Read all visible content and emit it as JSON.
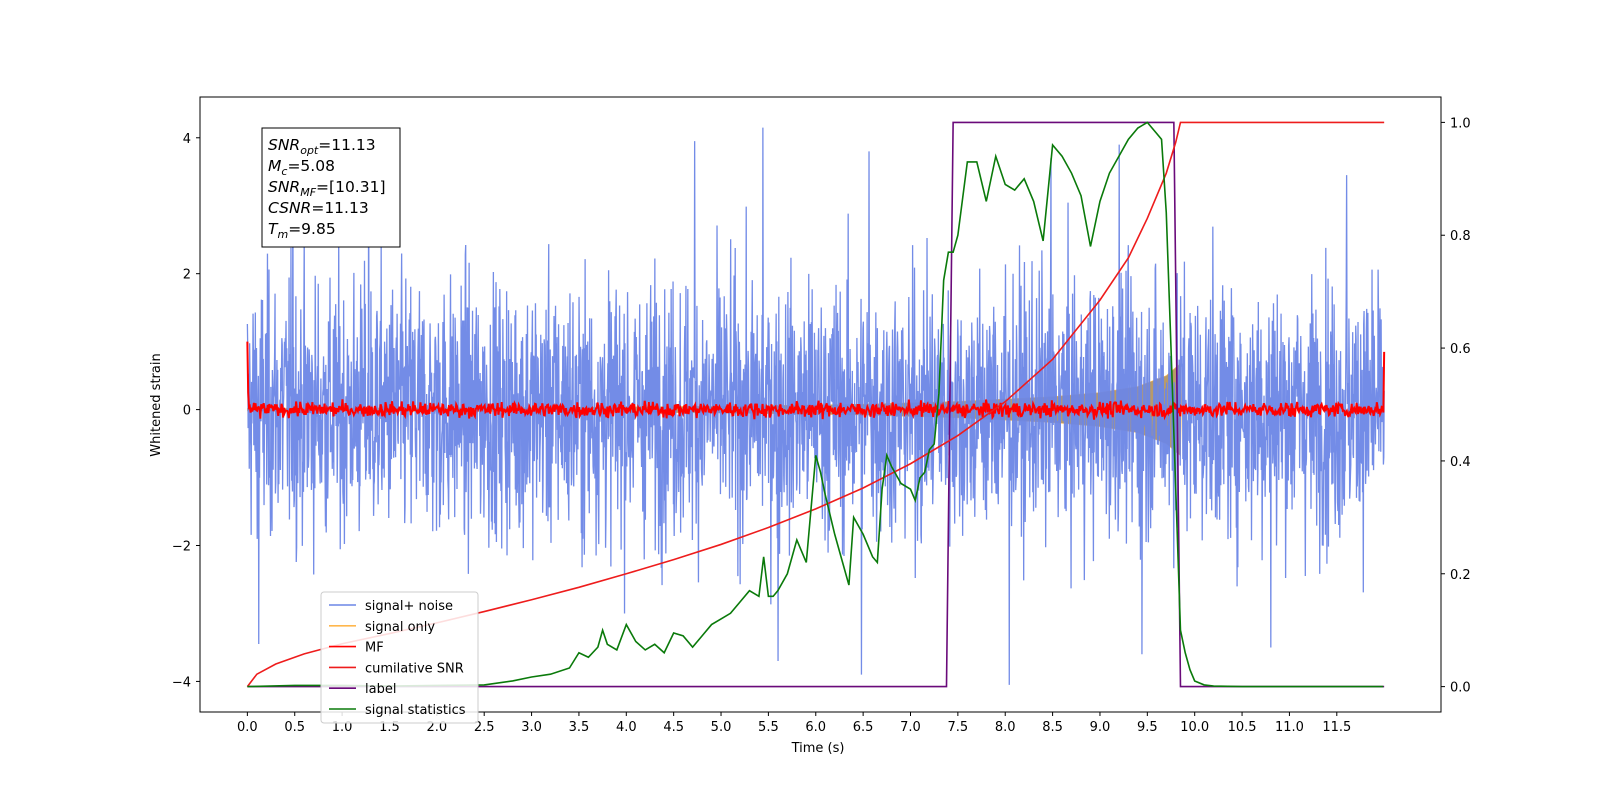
{
  "chart_data": {
    "type": "line",
    "xlabel": "Time (s)",
    "ylabel": "Whitened strain",
    "xlim": [
      -0.5,
      12.6
    ],
    "ylim": [
      -4.45,
      4.6
    ],
    "y2lim": [
      -0.045,
      1.045
    ],
    "xticks": [
      0.0,
      0.5,
      1.0,
      1.5,
      2.0,
      2.5,
      3.0,
      3.5,
      4.0,
      4.5,
      5.0,
      5.5,
      6.0,
      6.5,
      7.0,
      7.5,
      8.0,
      8.5,
      9.0,
      9.5,
      10.0,
      10.5,
      11.0,
      11.5
    ],
    "xtick_labels": [
      "0.0",
      "0.5",
      "1.0",
      "1.5",
      "2.0",
      "2.5",
      "3.0",
      "3.5",
      "4.0",
      "4.5",
      "5.0",
      "5.5",
      "6.0",
      "6.5",
      "7.0",
      "7.5",
      "8.0",
      "8.5",
      "9.0",
      "9.5",
      "10.0",
      "10.5",
      "11.0",
      "11.5"
    ],
    "yticks": [
      -4,
      -2,
      0,
      2,
      4
    ],
    "ytick_labels": [
      "−4",
      "−2",
      "0",
      "2",
      "4"
    ],
    "y2ticks": [
      0.0,
      0.2,
      0.4,
      0.6,
      0.8,
      1.0
    ],
    "y2tick_labels": [
      "0.0",
      "0.2",
      "0.4",
      "0.6",
      "0.8",
      "1.0"
    ],
    "legend_position": "lower left",
    "annotation": [
      {
        "main": "SNR",
        "sub": "opt",
        "rest": "=11.13"
      },
      {
        "main": "M",
        "sub": "c",
        "rest": "=5.08"
      },
      {
        "main": "SNR",
        "sub": "MF",
        "rest": "=[10.31]"
      },
      {
        "main": "CSNR",
        "sub": "",
        "rest": "=11.13"
      },
      {
        "main": "T",
        "sub": "m",
        "rest": "=9.85"
      }
    ],
    "series": [
      {
        "name": "signal+ noise",
        "color": "#6b86e6",
        "axis": "left",
        "description_values": {
          "t_start": 0.0,
          "t_end": 12.0,
          "mean": 0.0,
          "std": 1.0,
          "min": -4.05,
          "max": 4.15
        }
      },
      {
        "name": "signal only",
        "color": "#ffb74d",
        "axis": "left",
        "envelope": {
          "t": [
            0.0,
            3.0,
            5.0,
            6.5,
            7.5,
            8.5,
            9.0,
            9.4,
            9.7,
            9.85,
            9.86
          ],
          "amp": [
            0.02,
            0.03,
            0.05,
            0.08,
            0.12,
            0.19,
            0.25,
            0.34,
            0.5,
            0.68,
            0.0
          ]
        }
      },
      {
        "name": "MF",
        "color": "#ff0000",
        "axis": "left",
        "description_values": {
          "t_start": 0.0,
          "t_end": 12.0,
          "start_value": 1.0,
          "noise_std": 0.08,
          "end_value": 0.85
        }
      },
      {
        "name": "cumilative SNR",
        "color": "#ee1c1c",
        "axis": "right",
        "x": [
          0.0,
          0.1,
          0.3,
          0.6,
          1.0,
          1.5,
          2.0,
          2.5,
          3.0,
          3.5,
          4.0,
          4.5,
          5.0,
          5.5,
          6.0,
          6.5,
          7.0,
          7.5,
          8.0,
          8.5,
          9.0,
          9.3,
          9.5,
          9.7,
          9.8,
          9.85,
          10.5,
          11.0,
          11.5,
          12.0
        ],
        "y": [
          0.0,
          0.022,
          0.04,
          0.058,
          0.076,
          0.094,
          0.113,
          0.133,
          0.154,
          0.176,
          0.2,
          0.225,
          0.252,
          0.282,
          0.315,
          0.352,
          0.395,
          0.445,
          0.505,
          0.58,
          0.685,
          0.76,
          0.83,
          0.91,
          0.965,
          1.0,
          1.0,
          1.0,
          1.0,
          1.0
        ]
      },
      {
        "name": "label",
        "color": "#6a0a7a",
        "axis": "right",
        "x": [
          0.0,
          7.38,
          7.45,
          9.78,
          9.85,
          12.0
        ],
        "y": [
          0.0,
          0.0,
          1.0,
          1.0,
          0.0,
          0.0
        ]
      },
      {
        "name": "signal statistics",
        "color": "#0a7a0a",
        "axis": "right",
        "x": [
          0.0,
          0.5,
          1.0,
          1.5,
          2.0,
          2.5,
          2.8,
          3.0,
          3.2,
          3.4,
          3.5,
          3.6,
          3.7,
          3.75,
          3.8,
          3.9,
          4.0,
          4.1,
          4.2,
          4.3,
          4.4,
          4.5,
          4.6,
          4.7,
          4.8,
          4.9,
          5.0,
          5.1,
          5.2,
          5.3,
          5.4,
          5.45,
          5.5,
          5.55,
          5.6,
          5.7,
          5.8,
          5.9,
          6.0,
          6.05,
          6.1,
          6.2,
          6.3,
          6.35,
          6.4,
          6.5,
          6.6,
          6.65,
          6.7,
          6.75,
          6.8,
          6.9,
          7.0,
          7.05,
          7.1,
          7.15,
          7.2,
          7.25,
          7.3,
          7.35,
          7.4,
          7.45,
          7.5,
          7.6,
          7.7,
          7.8,
          7.9,
          8.0,
          8.1,
          8.2,
          8.3,
          8.4,
          8.5,
          8.6,
          8.7,
          8.8,
          8.9,
          9.0,
          9.1,
          9.2,
          9.3,
          9.4,
          9.5,
          9.6,
          9.65,
          9.7,
          9.75,
          9.8,
          9.85,
          9.9,
          9.95,
          10.0,
          10.1,
          10.2,
          10.5,
          11.0,
          11.5,
          11.99
        ],
        "y": [
          0.0,
          0.002,
          0.002,
          0.001,
          0.002,
          0.003,
          0.01,
          0.017,
          0.022,
          0.033,
          0.06,
          0.052,
          0.07,
          0.1,
          0.075,
          0.065,
          0.11,
          0.08,
          0.065,
          0.075,
          0.06,
          0.095,
          0.09,
          0.07,
          0.09,
          0.11,
          0.12,
          0.13,
          0.15,
          0.17,
          0.16,
          0.23,
          0.16,
          0.16,
          0.17,
          0.2,
          0.26,
          0.22,
          0.41,
          0.38,
          0.34,
          0.27,
          0.21,
          0.18,
          0.3,
          0.27,
          0.23,
          0.22,
          0.35,
          0.41,
          0.39,
          0.36,
          0.35,
          0.33,
          0.37,
          0.38,
          0.42,
          0.43,
          0.52,
          0.72,
          0.77,
          0.77,
          0.8,
          0.93,
          0.93,
          0.86,
          0.94,
          0.89,
          0.88,
          0.9,
          0.86,
          0.79,
          0.96,
          0.94,
          0.91,
          0.87,
          0.78,
          0.86,
          0.91,
          0.94,
          0.97,
          0.99,
          1.0,
          0.98,
          0.97,
          0.84,
          0.6,
          0.35,
          0.1,
          0.06,
          0.03,
          0.01,
          0.003,
          0.001,
          0.0,
          0.0,
          0.0,
          0.0
        ]
      }
    ]
  }
}
